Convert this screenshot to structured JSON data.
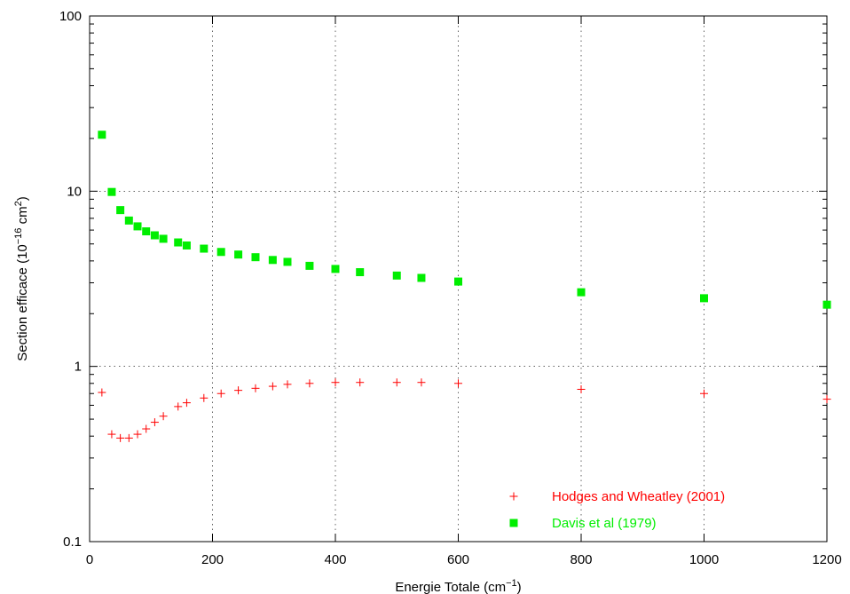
{
  "chart_data": {
    "type": "scatter",
    "xlabel": {
      "prefix": "Energie Totale (cm",
      "sup": "−1",
      "suffix": ")"
    },
    "ylabel": {
      "prefix": "Section efficace (10",
      "sup1": "−16",
      "mid": " cm",
      "sup2": "2",
      "suffix": ")"
    },
    "xlim": [
      0,
      1200
    ],
    "ylim": [
      0.1,
      100
    ],
    "yscale": "log",
    "xticks": [
      0,
      200,
      400,
      600,
      800,
      1000,
      1200
    ],
    "xtick_labels": [
      "0",
      "200",
      "400",
      "600",
      "800",
      "1000",
      "1200"
    ],
    "yticks": [
      0.1,
      1,
      10,
      100
    ],
    "ytick_labels": [
      "0.1",
      "1",
      "10",
      "100"
    ],
    "grid": true,
    "legend_position": "bottom-right",
    "series": [
      {
        "name": "Hodges and Wheatley (2001)",
        "marker": "plus",
        "color": "#ff0000",
        "x": [
          20,
          36,
          50,
          64,
          78,
          92,
          106,
          120,
          144,
          158,
          186,
          214,
          242,
          270,
          298,
          322,
          358,
          400,
          440,
          500,
          540,
          600,
          800,
          1000,
          1200
        ],
        "y": [
          0.71,
          0.41,
          0.39,
          0.39,
          0.41,
          0.44,
          0.48,
          0.52,
          0.59,
          0.62,
          0.66,
          0.7,
          0.73,
          0.75,
          0.77,
          0.79,
          0.8,
          0.81,
          0.81,
          0.81,
          0.81,
          0.8,
          0.74,
          0.7,
          0.65
        ]
      },
      {
        "name": "Davis et al (1979)",
        "marker": "square",
        "color": "#00ee00",
        "x": [
          20,
          36,
          50,
          64,
          78,
          92,
          106,
          120,
          144,
          158,
          186,
          214,
          242,
          270,
          298,
          322,
          358,
          400,
          440,
          500,
          540,
          600,
          800,
          1000,
          1200
        ],
        "y": [
          21,
          9.9,
          7.8,
          6.8,
          6.3,
          5.9,
          5.6,
          5.35,
          5.1,
          4.9,
          4.7,
          4.5,
          4.35,
          4.2,
          4.05,
          3.95,
          3.75,
          3.6,
          3.45,
          3.3,
          3.2,
          3.05,
          2.65,
          2.45,
          2.25
        ]
      }
    ]
  }
}
